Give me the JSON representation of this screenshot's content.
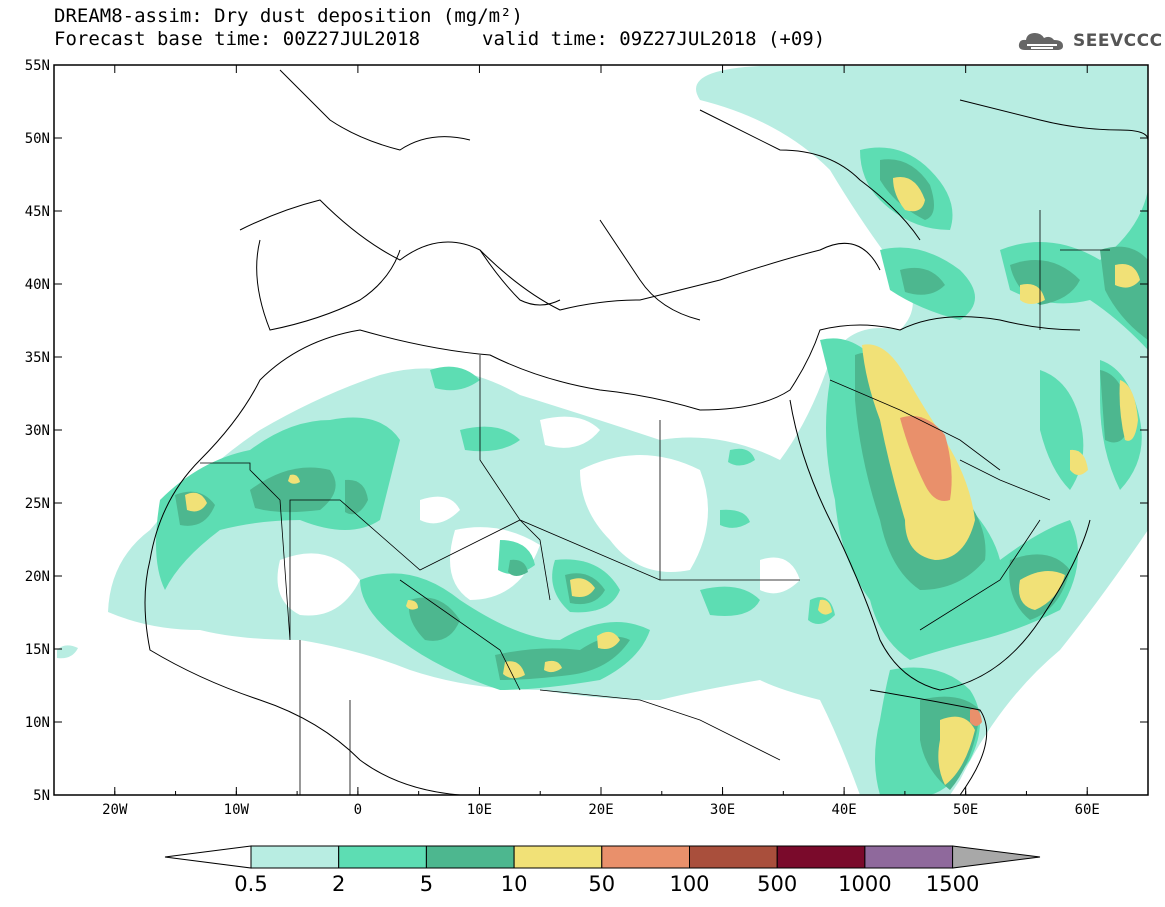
{
  "header": {
    "title": "DREAM8-assim: Dry dust deposition (mg/m²)",
    "base_time": "Forecast base time: 00Z27JUL2018",
    "valid_time": "valid time: 09Z27JUL2018 (+09)"
  },
  "logo": {
    "text": "SEEVCCC",
    "icon": "cloud-icon"
  },
  "map": {
    "lon_range": [
      -25,
      65
    ],
    "lat_range": [
      5,
      55
    ],
    "lat_labels": [
      "55N",
      "50N",
      "45N",
      "40N",
      "35N",
      "30N",
      "25N",
      "20N",
      "15N",
      "10N",
      "5N"
    ],
    "lon_labels": [
      "20W",
      "10W",
      "0",
      "10E",
      "20E",
      "30E",
      "40E",
      "50E",
      "60E"
    ]
  },
  "colorbar": {
    "labels": [
      "0.5",
      "2",
      "5",
      "10",
      "50",
      "100",
      "500",
      "1000",
      "1500"
    ],
    "colors": [
      "#b8ede2",
      "#5dddb3",
      "#4db78f",
      "#f1e177",
      "#e9906b",
      "#a94f3c",
      "#7a0a2b",
      "#8f699c"
    ],
    "under_color": "#ffffff",
    "over_color": "#a8a8a8"
  }
}
